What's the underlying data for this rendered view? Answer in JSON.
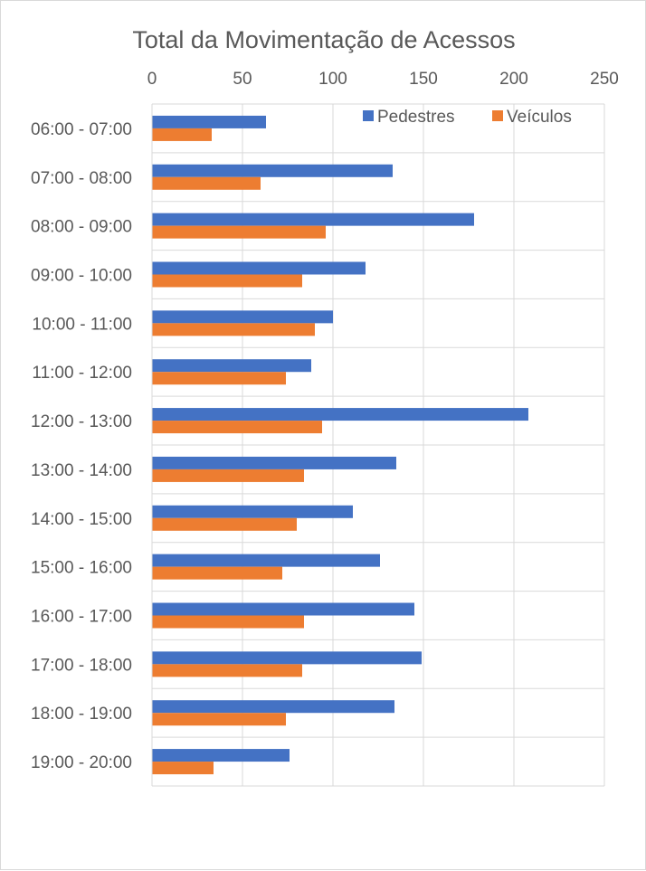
{
  "chart_data": {
    "type": "bar",
    "orientation": "horizontal",
    "title": "Total da Movimentação de Acessos",
    "xlabel": "",
    "ylabel": "",
    "xlim": [
      0,
      250
    ],
    "x_ticks": [
      0,
      50,
      100,
      150,
      200,
      250
    ],
    "x_axis_position": "top",
    "grid": true,
    "legend_position": "top-right",
    "categories": [
      "06:00 - 07:00",
      "07:00 - 08:00",
      "08:00 - 09:00",
      "09:00 - 10:00",
      "10:00 - 11:00",
      "11:00 - 12:00",
      "12:00 - 13:00",
      "13:00 - 14:00",
      "14:00 - 15:00",
      "15:00 - 16:00",
      "16:00 - 17:00",
      "17:00 - 18:00",
      "18:00 - 19:00",
      "19:00 - 20:00"
    ],
    "series": [
      {
        "name": "Pedestres",
        "color": "#4472c4",
        "values": [
          63,
          133,
          178,
          118,
          100,
          88,
          208,
          135,
          111,
          126,
          145,
          149,
          134,
          76
        ]
      },
      {
        "name": "Veículos",
        "color": "#ed7d31",
        "values": [
          33,
          60,
          96,
          83,
          90,
          74,
          94,
          84,
          80,
          72,
          84,
          83,
          74,
          34
        ]
      }
    ]
  }
}
